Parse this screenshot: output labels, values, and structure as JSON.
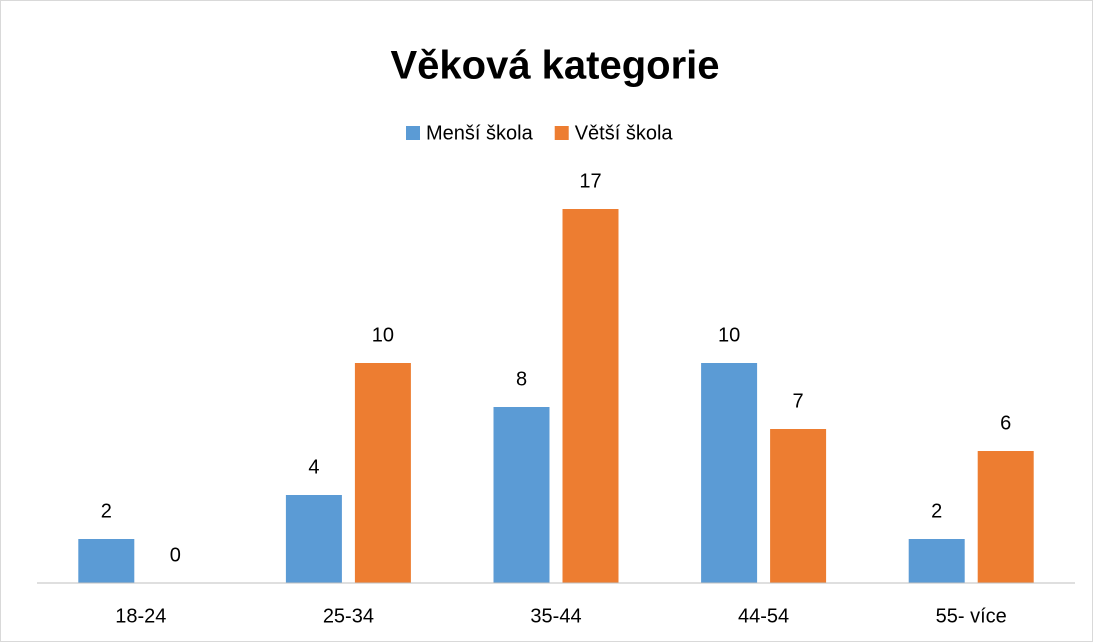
{
  "chart_data": {
    "type": "bar",
    "title": "Věková kategorie",
    "categories": [
      "18-24",
      "25-34",
      "35-44",
      "44-54",
      "55- více"
    ],
    "series": [
      {
        "name": "Menší škola",
        "color": "#5b9bd5",
        "values": [
          2,
          4,
          8,
          10,
          2
        ]
      },
      {
        "name": "Větší škola",
        "color": "#ed7d31",
        "values": [
          0,
          10,
          17,
          7,
          6
        ]
      }
    ],
    "legend": "top",
    "grid": false
  }
}
